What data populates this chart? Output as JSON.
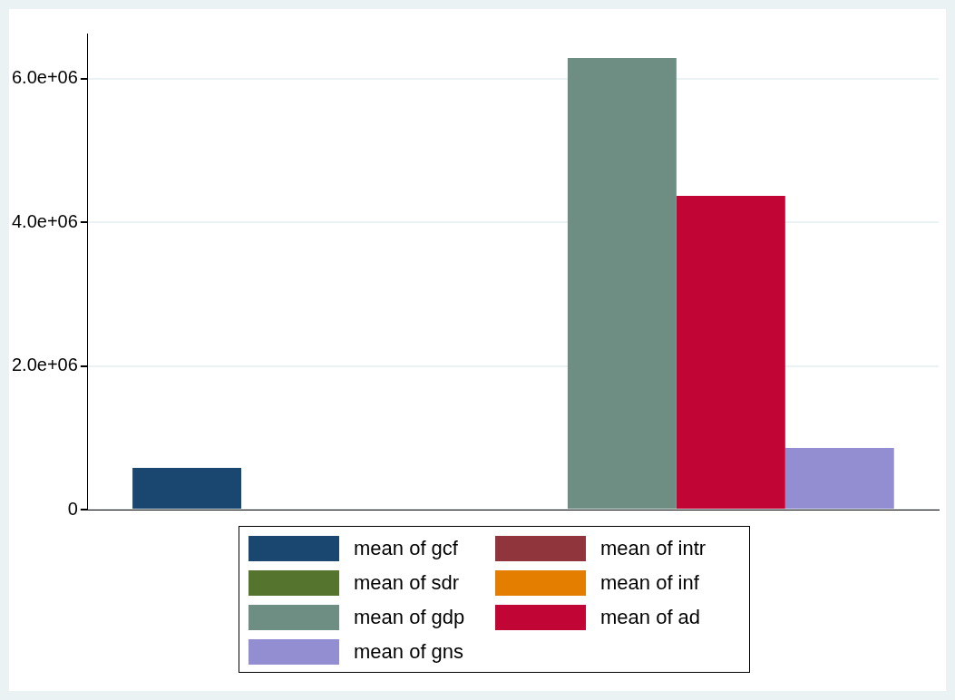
{
  "chart_data": {
    "type": "bar",
    "categories": [
      null
    ],
    "series": [
      {
        "name": "mean of gcf",
        "color": "#1a476f",
        "values": [
          580000
        ]
      },
      {
        "name": "mean of intr",
        "color": "#90353b",
        "values": [
          0
        ]
      },
      {
        "name": "mean of sdr",
        "color": "#55752f",
        "values": [
          0
        ]
      },
      {
        "name": "mean of inf",
        "color": "#e37e00",
        "values": [
          0
        ]
      },
      {
        "name": "mean of gdp",
        "color": "#6e8e84",
        "values": [
          6290000
        ]
      },
      {
        "name": "mean of ad",
        "color": "#c10534",
        "values": [
          4370000
        ]
      },
      {
        "name": "mean of gns",
        "color": "#938dd2",
        "values": [
          860000
        ]
      }
    ],
    "ylim": [
      0,
      6630000
    ],
    "yticks": [
      {
        "value": 0,
        "label": "0"
      },
      {
        "value": 2000000,
        "label": "2.0e+06"
      },
      {
        "value": 4000000,
        "label": "4.0e+06"
      },
      {
        "value": 6000000,
        "label": "6.0e+06"
      }
    ],
    "grid": "y",
    "legend": "bottom"
  }
}
